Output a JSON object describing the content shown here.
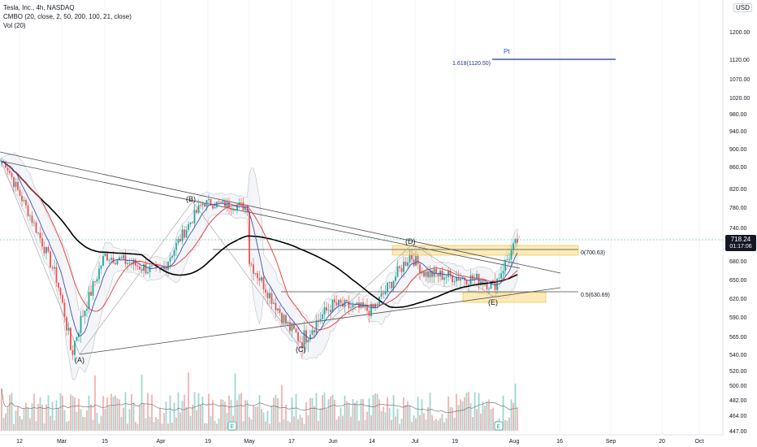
{
  "header": {
    "symbol_line": "Tesla, Inc., 4h, NASDAQ",
    "indicator_line": "CMBO (20, close, 2, 50, 200, 100, 21, close)",
    "volume_line": "Vol (20)",
    "currency": "USD"
  },
  "last_price": {
    "value": "718.24",
    "countdown": "01:17:06"
  },
  "chart_data": {
    "type": "candlestick",
    "symbol": "Tesla, Inc.",
    "interval": "4h",
    "exchange": "NASDAQ",
    "currency": "USD",
    "ylim": [
      447,
      1240
    ],
    "y_ticks": [
      "1200.00",
      "1120.00",
      "1070.00",
      "1020.00",
      "980.00",
      "940.00",
      "900.00",
      "860.00",
      "820.00",
      "780.00",
      "740.00",
      "710.00",
      "680.00",
      "650.00",
      "620.00",
      "590.00",
      "565.00",
      "540.00",
      "520.00",
      "500.00",
      "482.00",
      "464.00",
      "447.00"
    ],
    "x_ticks": [
      "12",
      "Mar",
      "15",
      "Apr",
      "19",
      "May",
      "17",
      "Jun",
      "14",
      "Jul",
      "19",
      "Aug",
      "16",
      "Sep",
      "20",
      "Oct"
    ],
    "approx_close_path": [
      {
        "x": "12",
        "y": 870
      },
      {
        "x": "Mar",
        "y": 650
      },
      {
        "x": "Mar",
        "y": 545
      },
      {
        "x": "15",
        "y": 690
      },
      {
        "x": "Apr",
        "y": 660
      },
      {
        "x": "19",
        "y": 790
      },
      {
        "x": "19",
        "y": 740
      },
      {
        "x": "May",
        "y": 680
      },
      {
        "x": "17",
        "y": 580
      },
      {
        "x": "17",
        "y": 560
      },
      {
        "x": "Jun",
        "y": 610
      },
      {
        "x": "14",
        "y": 600
      },
      {
        "x": "Jul",
        "y": 690
      },
      {
        "x": "Jul",
        "y": 660
      },
      {
        "x": "19",
        "y": 650
      },
      {
        "x": "19",
        "y": 640
      },
      {
        "x": "Aug",
        "y": 718
      }
    ],
    "wave_labels": [
      "(A)",
      "(B)",
      "(C)",
      "(D)",
      "(E)"
    ],
    "levels": [
      {
        "label": "0(700.63)",
        "value": 700.63
      },
      {
        "label": "0.5(630.69)",
        "value": 630.69
      },
      {
        "label": "1.618(1120.50)",
        "value": 1120.5
      }
    ],
    "target_label": "Pt",
    "earnings_marker": "E",
    "series": [
      {
        "name": "SMA 200",
        "color": "#000000"
      },
      {
        "name": "SMA 50",
        "color": "#e53935"
      },
      {
        "name": "SMA 20",
        "color": "#3f51b5"
      }
    ],
    "colors": {
      "up": "#26a69a",
      "down": "#ef5350",
      "level": "#131722",
      "target": "#1e3a8a",
      "zone": "#f9d776"
    }
  }
}
